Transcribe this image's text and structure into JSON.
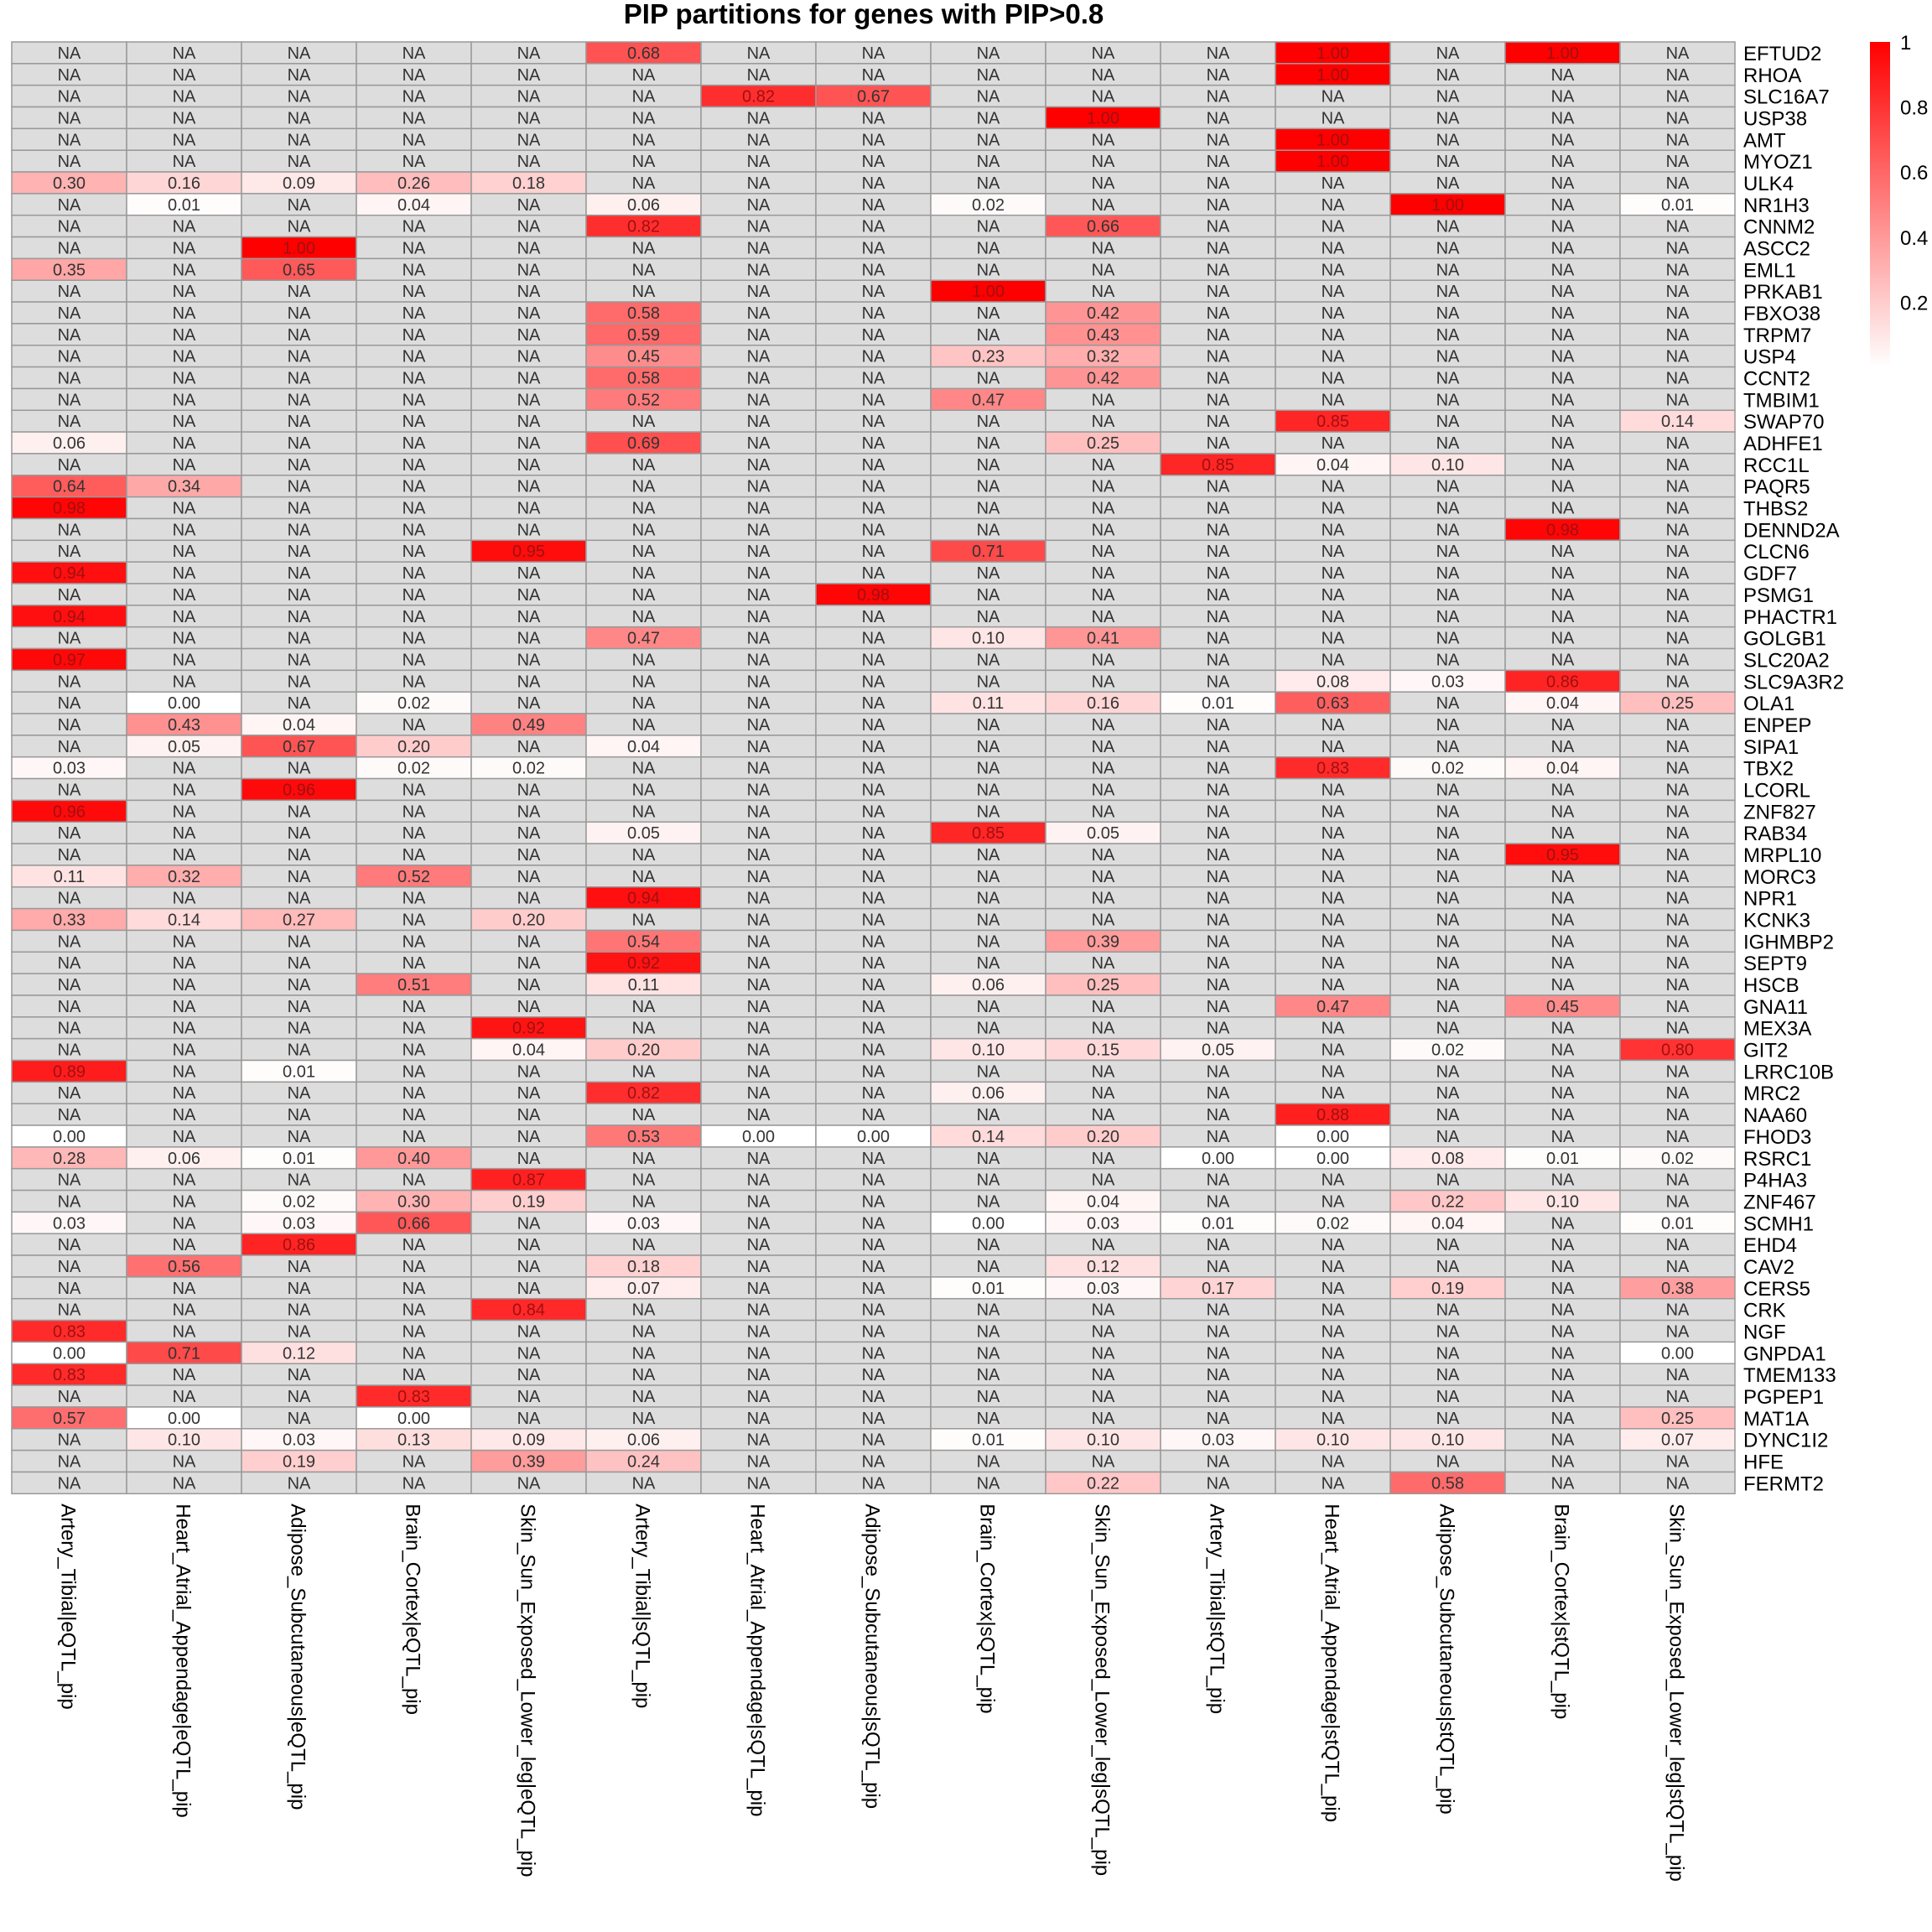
{
  "chart_data": {
    "type": "heatmap",
    "title": "PIP partitions for genes with PIP>0.8",
    "columns": [
      "Artery_Tibial|eQTL_pip",
      "Heart_Atrial_Appendage|eQTL_pip",
      "Adipose_Subcutaneous|eQTL_pip",
      "Brain_Cortex|eQTL_pip",
      "Skin_Sun_Exposed_Lower_leg|eQTL_pip",
      "Artery_Tibial|sQTL_pip",
      "Heart_Atrial_Appendage|sQTL_pip",
      "Adipose_Subcutaneous|sQTL_pip",
      "Brain_Cortex|sQTL_pip",
      "Skin_Sun_Exposed_Lower_leg|sQTL_pip",
      "Artery_Tibial|stQTL_pip",
      "Heart_Atrial_Appendage|stQTL_pip",
      "Adipose_Subcutaneous|stQTL_pip",
      "Brain_Cortex|stQTL_pip",
      "Skin_Sun_Exposed_Lower_leg|stQTL_pip"
    ],
    "rows": [
      "EFTUD2",
      "RHOA",
      "SLC16A7",
      "USP38",
      "AMT",
      "MYOZ1",
      "ULK4",
      "NR1H3",
      "CNNM2",
      "ASCC2",
      "EML1",
      "PRKAB1",
      "FBXO38",
      "TRPM7",
      "USP4",
      "CCNT2",
      "TMBIM1",
      "SWAP70",
      "ADHFE1",
      "RCC1L",
      "PAQR5",
      "THBS2",
      "DENND2A",
      "CLCN6",
      "GDF7",
      "PSMG1",
      "PHACTR1",
      "GOLGB1",
      "SLC20A2",
      "SLC9A3R2",
      "OLA1",
      "ENPEP",
      "SIPA1",
      "TBX2",
      "LCORL",
      "ZNF827",
      "RAB34",
      "MRPL10",
      "MORC3",
      "NPR1",
      "KCNK3",
      "IGHMBP2",
      "SEPT9",
      "HSCB",
      "GNA11",
      "MEX3A",
      "GIT2",
      "LRRC10B",
      "MRC2",
      "NAA60",
      "FHOD3",
      "RSRC1",
      "P4HA3",
      "ZNF467",
      "SCMH1",
      "EHD4",
      "CAV2",
      "CERS5",
      "CRK",
      "NGF",
      "GNPDA1",
      "TMEM133",
      "PGPEP1",
      "MAT1A",
      "DYNC1I2",
      "HFE",
      "FERMT2"
    ],
    "values": [
      [
        null,
        null,
        null,
        null,
        null,
        0.68,
        null,
        null,
        null,
        null,
        null,
        1.0,
        null,
        1.0,
        null
      ],
      [
        null,
        null,
        null,
        null,
        null,
        null,
        null,
        null,
        null,
        null,
        null,
        1.0,
        null,
        null,
        null
      ],
      [
        null,
        null,
        null,
        null,
        null,
        null,
        0.82,
        0.67,
        null,
        null,
        null,
        null,
        null,
        null,
        null
      ],
      [
        null,
        null,
        null,
        null,
        null,
        null,
        null,
        null,
        null,
        1.0,
        null,
        null,
        null,
        null,
        null
      ],
      [
        null,
        null,
        null,
        null,
        null,
        null,
        null,
        null,
        null,
        null,
        null,
        1.0,
        null,
        null,
        null
      ],
      [
        null,
        null,
        null,
        null,
        null,
        null,
        null,
        null,
        null,
        null,
        null,
        1.0,
        null,
        null,
        null
      ],
      [
        0.3,
        0.16,
        0.09,
        0.26,
        0.18,
        null,
        null,
        null,
        null,
        null,
        null,
        null,
        null,
        null,
        null
      ],
      [
        null,
        0.01,
        null,
        0.04,
        null,
        0.06,
        null,
        null,
        0.02,
        null,
        null,
        null,
        1.0,
        null,
        0.01
      ],
      [
        null,
        null,
        null,
        null,
        null,
        0.82,
        null,
        null,
        null,
        0.66,
        null,
        null,
        null,
        null,
        null
      ],
      [
        null,
        null,
        1.0,
        null,
        null,
        null,
        null,
        null,
        null,
        null,
        null,
        null,
        null,
        null,
        null
      ],
      [
        0.35,
        null,
        0.65,
        null,
        null,
        null,
        null,
        null,
        null,
        null,
        null,
        null,
        null,
        null,
        null
      ],
      [
        null,
        null,
        null,
        null,
        null,
        null,
        null,
        null,
        1.0,
        null,
        null,
        null,
        null,
        null,
        null
      ],
      [
        null,
        null,
        null,
        null,
        null,
        0.58,
        null,
        null,
        null,
        0.42,
        null,
        null,
        null,
        null,
        null
      ],
      [
        null,
        null,
        null,
        null,
        null,
        0.59,
        null,
        null,
        null,
        0.43,
        null,
        null,
        null,
        null,
        null
      ],
      [
        null,
        null,
        null,
        null,
        null,
        0.45,
        null,
        null,
        0.23,
        0.32,
        null,
        null,
        null,
        null,
        null
      ],
      [
        null,
        null,
        null,
        null,
        null,
        0.58,
        null,
        null,
        null,
        0.42,
        null,
        null,
        null,
        null,
        null
      ],
      [
        null,
        null,
        null,
        null,
        null,
        0.52,
        null,
        null,
        0.47,
        null,
        null,
        null,
        null,
        null,
        null
      ],
      [
        null,
        null,
        null,
        null,
        null,
        null,
        null,
        null,
        null,
        null,
        null,
        0.85,
        null,
        null,
        0.14
      ],
      [
        0.06,
        null,
        null,
        null,
        null,
        0.69,
        null,
        null,
        null,
        0.25,
        null,
        null,
        null,
        null,
        null
      ],
      [
        null,
        null,
        null,
        null,
        null,
        null,
        null,
        null,
        null,
        null,
        0.85,
        0.04,
        0.1,
        null,
        null
      ],
      [
        0.64,
        0.34,
        null,
        null,
        null,
        null,
        null,
        null,
        null,
        null,
        null,
        null,
        null,
        null,
        null
      ],
      [
        0.98,
        null,
        null,
        null,
        null,
        null,
        null,
        null,
        null,
        null,
        null,
        null,
        null,
        null,
        null
      ],
      [
        null,
        null,
        null,
        null,
        null,
        null,
        null,
        null,
        null,
        null,
        null,
        null,
        null,
        0.98,
        null
      ],
      [
        null,
        null,
        null,
        null,
        0.95,
        null,
        null,
        null,
        0.71,
        null,
        null,
        null,
        null,
        null,
        null
      ],
      [
        0.94,
        null,
        null,
        null,
        null,
        null,
        null,
        null,
        null,
        null,
        null,
        null,
        null,
        null,
        null
      ],
      [
        null,
        null,
        null,
        null,
        null,
        null,
        null,
        0.98,
        null,
        null,
        null,
        null,
        null,
        null,
        null
      ],
      [
        0.94,
        null,
        null,
        null,
        null,
        null,
        null,
        null,
        null,
        null,
        null,
        null,
        null,
        null,
        null
      ],
      [
        null,
        null,
        null,
        null,
        null,
        0.47,
        null,
        null,
        0.1,
        0.41,
        null,
        null,
        null,
        null,
        null
      ],
      [
        0.97,
        null,
        null,
        null,
        null,
        null,
        null,
        null,
        null,
        null,
        null,
        null,
        null,
        null,
        null
      ],
      [
        null,
        null,
        null,
        null,
        null,
        null,
        null,
        null,
        null,
        null,
        null,
        0.08,
        0.03,
        0.86,
        null
      ],
      [
        null,
        0.0,
        null,
        0.02,
        null,
        null,
        null,
        null,
        0.11,
        0.16,
        0.01,
        0.63,
        null,
        0.04,
        0.25
      ],
      [
        null,
        0.43,
        0.04,
        null,
        0.49,
        null,
        null,
        null,
        null,
        null,
        null,
        null,
        null,
        null,
        null
      ],
      [
        null,
        0.05,
        0.67,
        0.2,
        null,
        0.04,
        null,
        null,
        null,
        null,
        null,
        null,
        null,
        null,
        null
      ],
      [
        0.03,
        null,
        null,
        0.02,
        0.02,
        null,
        null,
        null,
        null,
        null,
        null,
        0.83,
        0.02,
        0.04,
        null
      ],
      [
        null,
        null,
        0.96,
        null,
        null,
        null,
        null,
        null,
        null,
        null,
        null,
        null,
        null,
        null,
        null
      ],
      [
        0.96,
        null,
        null,
        null,
        null,
        null,
        null,
        null,
        null,
        null,
        null,
        null,
        null,
        null,
        null
      ],
      [
        null,
        null,
        null,
        null,
        null,
        0.05,
        null,
        null,
        0.85,
        0.05,
        null,
        null,
        null,
        null,
        null
      ],
      [
        null,
        null,
        null,
        null,
        null,
        null,
        null,
        null,
        null,
        null,
        null,
        null,
        null,
        0.95,
        null
      ],
      [
        0.11,
        0.32,
        null,
        0.52,
        null,
        null,
        null,
        null,
        null,
        null,
        null,
        null,
        null,
        null,
        null
      ],
      [
        null,
        null,
        null,
        null,
        null,
        0.94,
        null,
        null,
        null,
        null,
        null,
        null,
        null,
        null,
        null
      ],
      [
        0.33,
        0.14,
        0.27,
        null,
        0.2,
        null,
        null,
        null,
        null,
        null,
        null,
        null,
        null,
        null,
        null
      ],
      [
        null,
        null,
        null,
        null,
        null,
        0.54,
        null,
        null,
        null,
        0.39,
        null,
        null,
        null,
        null,
        null
      ],
      [
        null,
        null,
        null,
        null,
        null,
        0.92,
        null,
        null,
        null,
        null,
        null,
        null,
        null,
        null,
        null
      ],
      [
        null,
        null,
        null,
        0.51,
        null,
        0.11,
        null,
        null,
        0.06,
        0.25,
        null,
        null,
        null,
        null,
        null
      ],
      [
        null,
        null,
        null,
        null,
        null,
        null,
        null,
        null,
        null,
        null,
        null,
        0.47,
        null,
        0.45,
        null
      ],
      [
        null,
        null,
        null,
        null,
        0.92,
        null,
        null,
        null,
        null,
        null,
        null,
        null,
        null,
        null,
        null
      ],
      [
        null,
        null,
        null,
        null,
        0.04,
        0.2,
        null,
        null,
        0.1,
        0.15,
        0.05,
        null,
        0.02,
        null,
        0.8
      ],
      [
        0.89,
        null,
        0.01,
        null,
        null,
        null,
        null,
        null,
        null,
        null,
        null,
        null,
        null,
        null,
        null
      ],
      [
        null,
        null,
        null,
        null,
        null,
        0.82,
        null,
        null,
        0.06,
        null,
        null,
        null,
        null,
        null,
        null
      ],
      [
        null,
        null,
        null,
        null,
        null,
        null,
        null,
        null,
        null,
        null,
        null,
        0.88,
        null,
        null,
        null
      ],
      [
        0.0,
        null,
        null,
        null,
        null,
        0.53,
        0.0,
        0.0,
        0.14,
        0.2,
        null,
        0.0,
        null,
        null,
        null
      ],
      [
        0.28,
        0.06,
        0.01,
        0.4,
        null,
        null,
        null,
        null,
        null,
        null,
        0.0,
        0.0,
        0.08,
        0.01,
        0.02
      ],
      [
        null,
        null,
        null,
        null,
        0.87,
        null,
        null,
        null,
        null,
        null,
        null,
        null,
        null,
        null,
        null
      ],
      [
        null,
        null,
        0.02,
        0.3,
        0.19,
        null,
        null,
        null,
        null,
        0.04,
        null,
        null,
        0.22,
        0.1,
        null
      ],
      [
        0.03,
        null,
        0.03,
        0.66,
        null,
        0.03,
        null,
        null,
        0.0,
        0.03,
        0.01,
        0.02,
        0.04,
        null,
        0.01
      ],
      [
        null,
        null,
        0.86,
        null,
        null,
        null,
        null,
        null,
        null,
        null,
        null,
        null,
        null,
        null,
        null
      ],
      [
        null,
        0.56,
        null,
        null,
        null,
        0.18,
        null,
        null,
        null,
        0.12,
        null,
        null,
        null,
        null,
        null
      ],
      [
        null,
        null,
        null,
        null,
        null,
        0.07,
        null,
        null,
        0.01,
        0.03,
        0.17,
        null,
        0.19,
        null,
        0.38
      ],
      [
        null,
        null,
        null,
        null,
        0.84,
        null,
        null,
        null,
        null,
        null,
        null,
        null,
        null,
        null,
        null
      ],
      [
        0.83,
        null,
        null,
        null,
        null,
        null,
        null,
        null,
        null,
        null,
        null,
        null,
        null,
        null,
        null
      ],
      [
        0.0,
        0.71,
        0.12,
        null,
        null,
        null,
        null,
        null,
        null,
        null,
        null,
        null,
        null,
        null,
        0.0
      ],
      [
        0.83,
        null,
        null,
        null,
        null,
        null,
        null,
        null,
        null,
        null,
        null,
        null,
        null,
        null,
        null
      ],
      [
        null,
        null,
        null,
        0.83,
        null,
        null,
        null,
        null,
        null,
        null,
        null,
        null,
        null,
        null,
        null
      ],
      [
        0.57,
        0.0,
        null,
        0.0,
        null,
        null,
        null,
        null,
        null,
        null,
        null,
        null,
        null,
        null,
        0.25
      ],
      [
        null,
        0.1,
        0.03,
        0.13,
        0.09,
        0.06,
        null,
        null,
        0.01,
        0.1,
        0.03,
        0.1,
        0.1,
        null,
        0.07
      ],
      [
        null,
        null,
        0.19,
        null,
        0.39,
        0.24,
        null,
        null,
        null,
        null,
        null,
        null,
        null,
        null,
        null
      ],
      [
        null,
        null,
        null,
        null,
        null,
        null,
        null,
        null,
        null,
        0.22,
        null,
        null,
        0.58,
        null,
        null
      ]
    ],
    "na_label": "NA",
    "na_color": "#dddddd",
    "colors": {
      "low": "#ffffff",
      "high": "#ff0000",
      "grid": "#999999"
    },
    "legend": {
      "placement": "right",
      "ticks": [
        "1",
        "0.8",
        "0.6",
        "0.4",
        "0.2"
      ],
      "tick_values": [
        1,
        0.8,
        0.6,
        0.4,
        0.2
      ],
      "range": [
        0,
        1
      ]
    }
  }
}
